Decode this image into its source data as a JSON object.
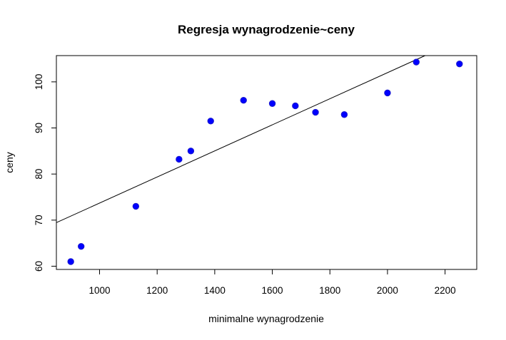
{
  "chart_data": {
    "type": "scatter",
    "title": "Regresja wynagrodzenie~ceny",
    "xlabel": "minimalne wynagrodzenie",
    "ylabel": "ceny",
    "xlim": [
      850,
      2310
    ],
    "ylim": [
      59.3,
      105.7
    ],
    "xticks": [
      1000,
      1200,
      1400,
      1600,
      1800,
      2000,
      2200
    ],
    "yticks": [
      60,
      70,
      80,
      90,
      100
    ],
    "xtick_labels": [
      "1000",
      "1200",
      "1400",
      "1600",
      "1800",
      "2000",
      "2200"
    ],
    "ytick_labels": [
      "60",
      "70",
      "80",
      "90",
      "100"
    ],
    "point_color": "#0000ff",
    "line_color": "#000000",
    "regression": {
      "intercept": 45.4,
      "slope": 0.0283
    },
    "points": [
      {
        "x": 900,
        "y": 61.0
      },
      {
        "x": 936,
        "y": 64.3
      },
      {
        "x": 1126,
        "y": 73.0
      },
      {
        "x": 1276,
        "y": 83.2
      },
      {
        "x": 1317,
        "y": 85.0
      },
      {
        "x": 1386,
        "y": 91.5
      },
      {
        "x": 1500,
        "y": 96.0
      },
      {
        "x": 1600,
        "y": 95.3
      },
      {
        "x": 1680,
        "y": 94.8
      },
      {
        "x": 1750,
        "y": 93.4
      },
      {
        "x": 1850,
        "y": 92.9
      },
      {
        "x": 2000,
        "y": 97.6
      },
      {
        "x": 2100,
        "y": 104.3
      },
      {
        "x": 2250,
        "y": 103.9
      }
    ],
    "grid": false,
    "legend": "none"
  }
}
